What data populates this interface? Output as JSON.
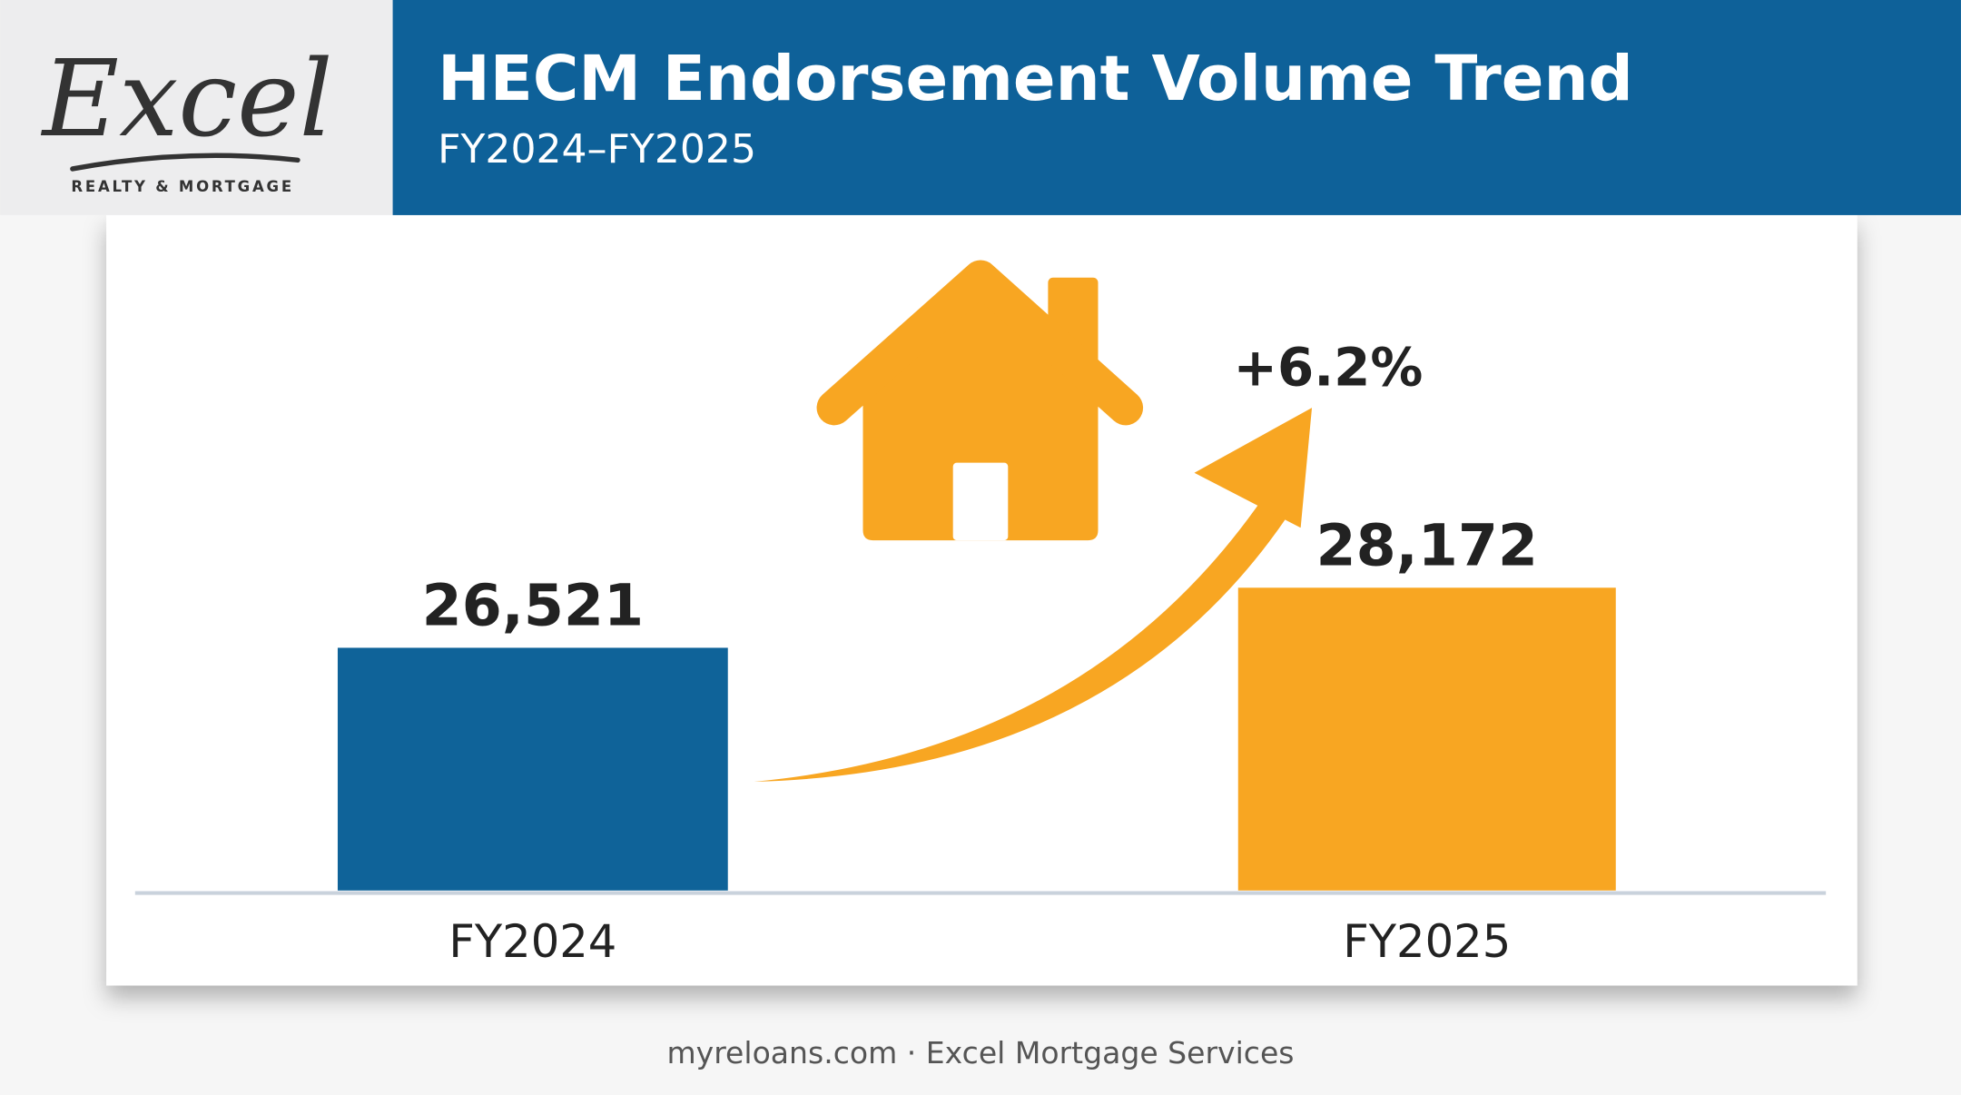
{
  "logo": {
    "name": "Excel",
    "tagline": "REALTY & MORTGAGE"
  },
  "chart_data": {
    "type": "bar",
    "title": "HECM Endorsement Volume Trend",
    "subtitle": "FY2024–FY2025",
    "categories": [
      "FY2024",
      "FY2025"
    ],
    "values": [
      26521,
      28172
    ],
    "value_labels": [
      "26,521",
      "28,172"
    ],
    "colors": [
      "#0f6399",
      "#f8a622"
    ],
    "annotation": "+6.2%",
    "ylim": [
      19850,
      37450
    ]
  },
  "footer": "myreloans.com · Excel Mortgage Services"
}
